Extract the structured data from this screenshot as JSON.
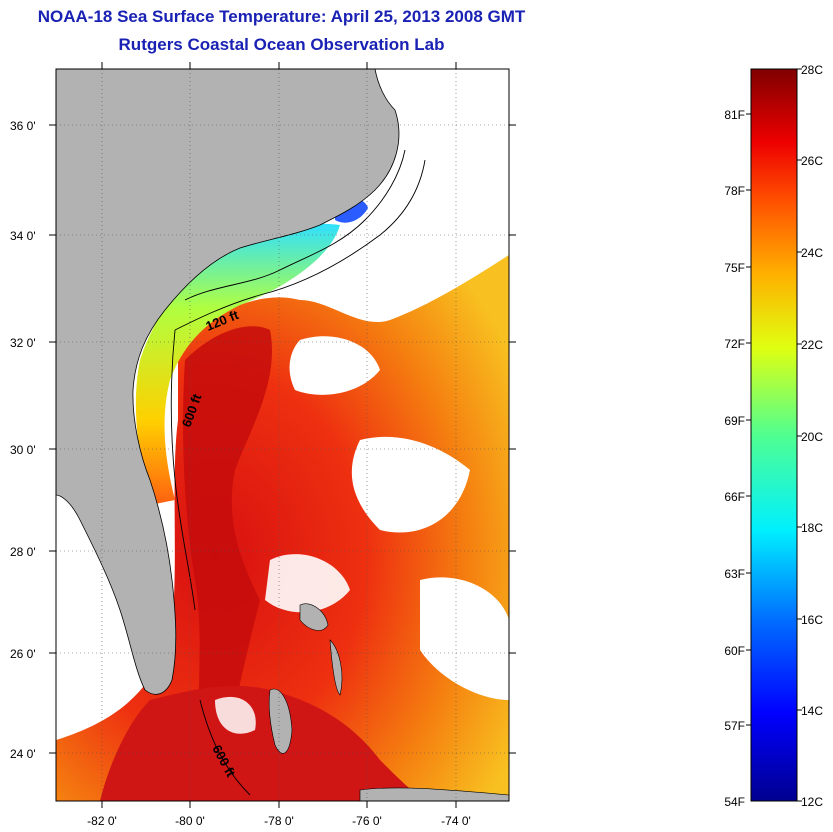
{
  "title": {
    "line1": "NOAA-18 Sea Surface Temperature:  April 25, 2013 2008 GMT",
    "line2": "Rutgers Coastal Ocean Observation Lab"
  },
  "axes": {
    "lat_labels": [
      "36 0'",
      "34 0'",
      "32 0'",
      "30 0'",
      "28 0'",
      "26 0'",
      "24 0'"
    ],
    "lon_labels": [
      "-82 0'",
      "-80 0'",
      "-78 0'",
      "-76 0'",
      "-74 0'"
    ]
  },
  "contours": {
    "label_120": "120 ft",
    "label_600_north": "600 ft",
    "label_600_south": "600 ft"
  },
  "colorbar": {
    "celsius": [
      "28C",
      "26C",
      "24C",
      "22C",
      "20C",
      "18C",
      "16C",
      "14C",
      "12C"
    ],
    "fahrenheit": [
      "81F",
      "78F",
      "75F",
      "72F",
      "69F",
      "66F",
      "63F",
      "60F",
      "57F",
      "54F"
    ]
  },
  "colors": {
    "land": "#b2b2b2",
    "title": "#1a22b4",
    "warm": "#e01010",
    "cold": "#0a0a9a"
  }
}
